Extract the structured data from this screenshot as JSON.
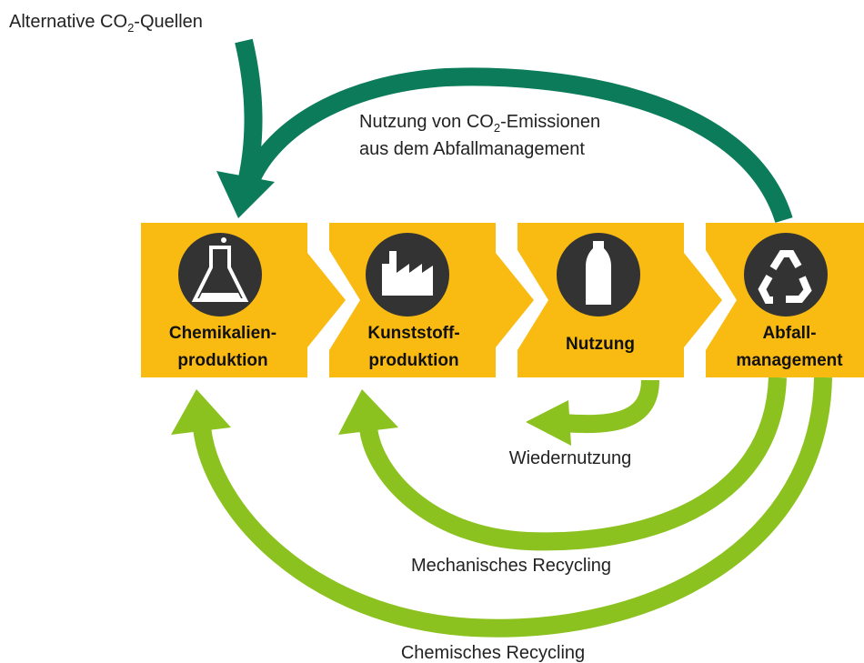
{
  "source_label": {
    "prefix": "Alternative CO",
    "sub": "2",
    "suffix": "-Quellen"
  },
  "nodes": [
    {
      "lines": [
        "Chemikalien-",
        "produktion"
      ]
    },
    {
      "lines": [
        "Kunststoff-",
        "produktion"
      ]
    },
    {
      "lines": [
        "Nutzung"
      ]
    },
    {
      "lines": [
        "Abfall-",
        "management"
      ]
    }
  ],
  "flows": {
    "co2_emissions": {
      "line1": {
        "prefix": "Nutzung von CO",
        "sub": "2",
        "suffix": "-Emissionen"
      },
      "line2": "aus dem Abfallmanagement"
    },
    "reuse": "Wiedernutzung",
    "mechanical": "Mechanisches Recycling",
    "chemical": "Chemisches Recycling"
  }
}
